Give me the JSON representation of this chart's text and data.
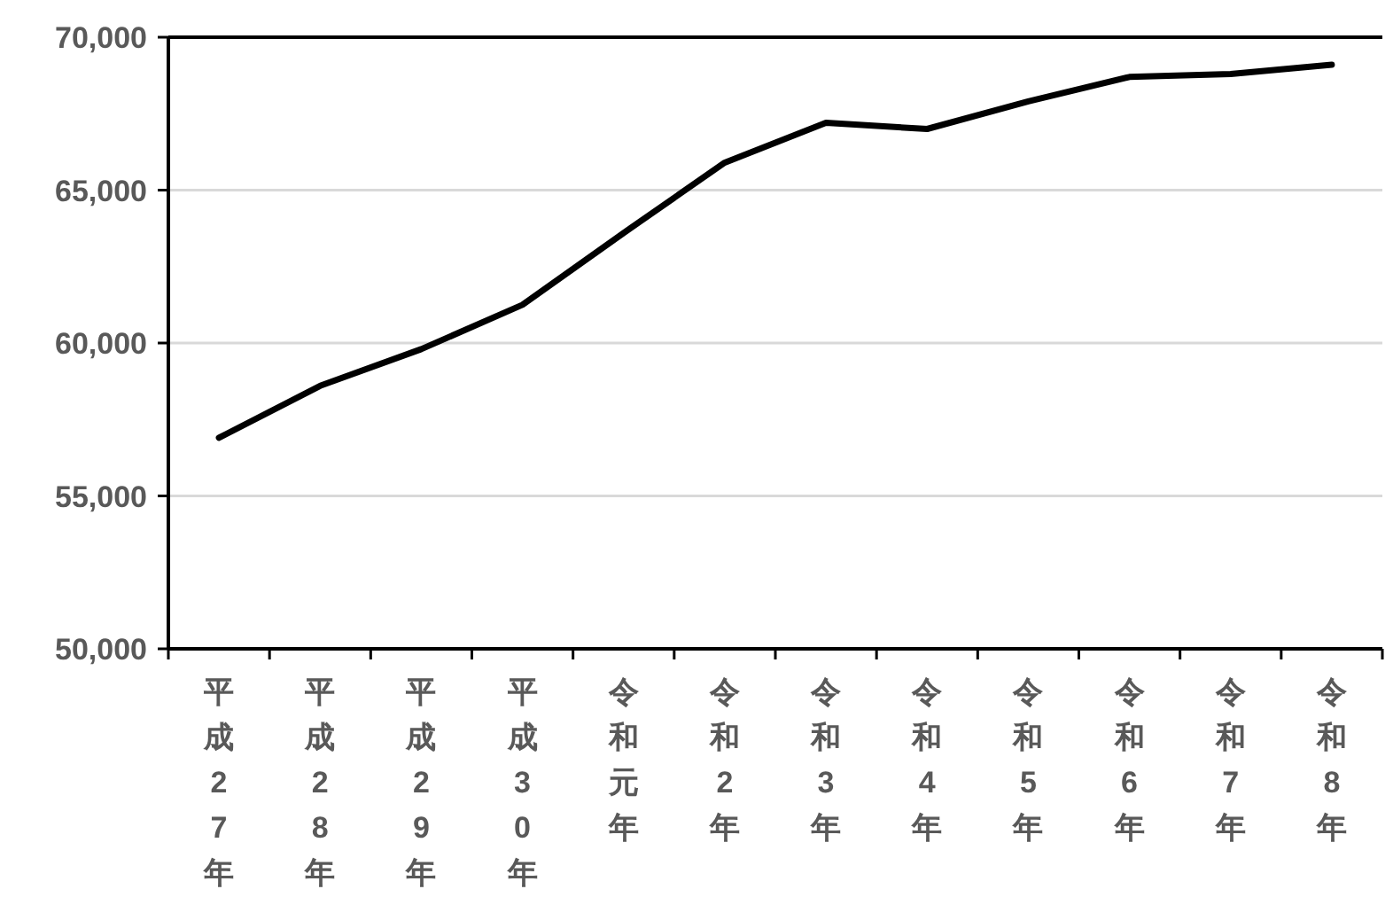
{
  "chart_data": {
    "type": "line",
    "categories": [
      "平成27年",
      "平成28年",
      "平成29年",
      "平成30年",
      "令和元年",
      "令和2年",
      "令和3年",
      "令和4年",
      "令和5年",
      "令和6年",
      "令和7年",
      "令和8年"
    ],
    "series": [
      {
        "color": "#000000",
        "values": [
          56900,
          58600,
          59800,
          61250,
          63600,
          65900,
          67200,
          67000,
          67900,
          68700,
          68800,
          69100
        ]
      }
    ],
    "ylim": [
      50000,
      70000
    ],
    "yticks": [
      {
        "value": 50000,
        "label": "50,000"
      },
      {
        "value": 55000,
        "label": "55,000"
      },
      {
        "value": 60000,
        "label": "60,000"
      },
      {
        "value": 65000,
        "label": "65,000"
      },
      {
        "value": 70000,
        "label": "70,000"
      }
    ],
    "grid": "y",
    "marker": "none",
    "line_style": "solid"
  }
}
